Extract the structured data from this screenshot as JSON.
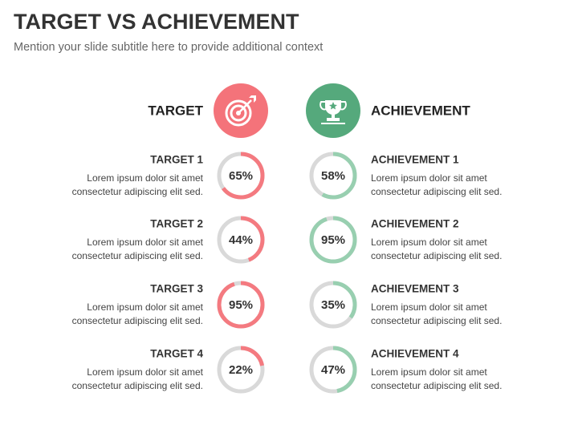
{
  "header": {
    "title": "TARGET VS ACHIEVEMENT",
    "subtitle": "Mention your slide subtitle here to provide additional context"
  },
  "columns": [
    {
      "heading": "TARGET",
      "color": "#f4737a",
      "ring_color": "#f47a80",
      "items": [
        {
          "title": "TARGET 1",
          "lines": [
            "Lorem ipsum dolor sit amet",
            "consectetur adipiscing elit sed."
          ],
          "value": 65,
          "value_label": "65%"
        },
        {
          "title": "TARGET 2",
          "lines": [
            "Lorem ipsum dolor sit amet",
            "consectetur adipiscing elit sed."
          ],
          "value": 44,
          "value_label": "44%"
        },
        {
          "title": "TARGET 3",
          "lines": [
            "Lorem ipsum dolor sit amet",
            "consectetur adipiscing elit sed."
          ],
          "value": 95,
          "value_label": "95%"
        },
        {
          "title": "TARGET 4",
          "lines": [
            "Lorem ipsum dolor sit amet",
            "consectetur adipiscing elit sed."
          ],
          "value": 22,
          "value_label": "22%"
        }
      ]
    },
    {
      "heading": "ACHIEVEMENT",
      "color": "#55a97c",
      "ring_color": "#98cfb0",
      "items": [
        {
          "title": "ACHIEVEMENT 1",
          "lines": [
            "Lorem ipsum dolor sit amet",
            "consectetur adipiscing elit sed."
          ],
          "value": 58,
          "value_label": "58%"
        },
        {
          "title": "ACHIEVEMENT 2",
          "lines": [
            "Lorem ipsum dolor sit amet",
            "consectetur adipiscing elit sed."
          ],
          "value": 95,
          "value_label": "95%"
        },
        {
          "title": "ACHIEVEMENT 3",
          "lines": [
            "Lorem ipsum dolor sit amet",
            "consectetur adipiscing elit sed."
          ],
          "value": 35,
          "value_label": "35%"
        },
        {
          "title": "ACHIEVEMENT 4",
          "lines": [
            "Lorem ipsum dolor sit amet",
            "consectetur adipiscing elit sed."
          ],
          "value": 47,
          "value_label": "47%"
        }
      ]
    }
  ]
}
